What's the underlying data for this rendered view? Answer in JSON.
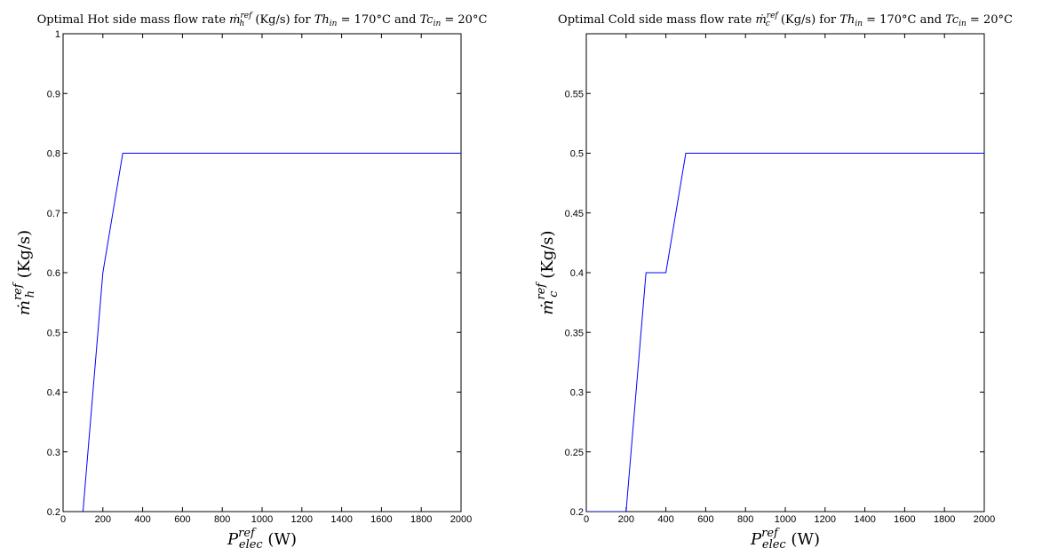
{
  "chart_data": [
    {
      "type": "line",
      "title": {
        "pre": "Optimal Hot side mass flow rate ",
        "sym": "ṁ",
        "sym_sub": "h",
        "sym_sup": "ref",
        "mid": " (Kg/s) for ",
        "t1": "Th",
        "t1_sub": "in",
        "t1_rest": " = 170°C and ",
        "t2": "Tc",
        "t2_sub": "in",
        "t2_rest": " = 20°C"
      },
      "xlabel": {
        "sym": "P",
        "sub": "elec",
        "sup": "ref",
        "unit": " (W)"
      },
      "ylabel": {
        "sym": "ṁ",
        "sub": "h",
        "sup": "ref",
        "unit": " (Kg/s)"
      },
      "xlim": [
        0,
        2000
      ],
      "ylim": [
        0.2,
        1.0
      ],
      "xticks": [
        0,
        200,
        400,
        600,
        800,
        1000,
        1200,
        1400,
        1600,
        1800,
        2000
      ],
      "yticks": [
        0.2,
        0.3,
        0.4,
        0.5,
        0.6,
        0.7,
        0.8,
        0.9,
        1.0
      ],
      "xtick_labels": [
        "0",
        "200",
        "400",
        "600",
        "800",
        "1000",
        "1200",
        "1400",
        "1600",
        "1800",
        "2000"
      ],
      "ytick_labels": [
        "0.2",
        "0.3",
        "0.4",
        "0.5",
        "0.6",
        "0.7",
        "0.8",
        "0.9",
        "1"
      ],
      "grid": false,
      "line_color": "#0000ff",
      "series": [
        {
          "x": [
            100,
            200,
            300,
            400,
            2000
          ],
          "y": [
            0.2,
            0.6,
            0.8,
            0.8,
            0.8
          ]
        }
      ]
    },
    {
      "type": "line",
      "title": {
        "pre": "Optimal Cold side mass flow rate ",
        "sym": "ṁ",
        "sym_sub": "c",
        "sym_sup": "ref",
        "mid": " (Kg/s) for ",
        "t1": "Th",
        "t1_sub": "in",
        "t1_rest": " = 170°C and ",
        "t2": "Tc",
        "t2_sub": "in",
        "t2_rest": " = 20°C"
      },
      "xlabel": {
        "sym": "P",
        "sub": "elec",
        "sup": "ref",
        "unit": " (W)"
      },
      "ylabel": {
        "sym": "ṁ",
        "sub": "c",
        "sup": "ref",
        "unit": " (Kg/s)"
      },
      "xlim": [
        0,
        2000
      ],
      "ylim": [
        0.2,
        0.6
      ],
      "xticks": [
        0,
        200,
        400,
        600,
        800,
        1000,
        1200,
        1400,
        1600,
        1800,
        2000
      ],
      "yticks": [
        0.2,
        0.25,
        0.3,
        0.35,
        0.4,
        0.45,
        0.5,
        0.55
      ],
      "xtick_labels": [
        "0",
        "200",
        "400",
        "600",
        "800",
        "1000",
        "1200",
        "1400",
        "1600",
        "1800",
        "2000"
      ],
      "ytick_labels": [
        "0.2",
        "0.25",
        "0.3",
        "0.35",
        "0.4",
        "0.45",
        "0.5",
        "0.55"
      ],
      "grid": false,
      "line_color": "#0000ff",
      "series": [
        {
          "x": [
            0,
            200,
            300,
            400,
            500,
            2000
          ],
          "y": [
            0.2,
            0.2,
            0.4,
            0.4,
            0.5,
            0.5
          ]
        }
      ]
    }
  ]
}
